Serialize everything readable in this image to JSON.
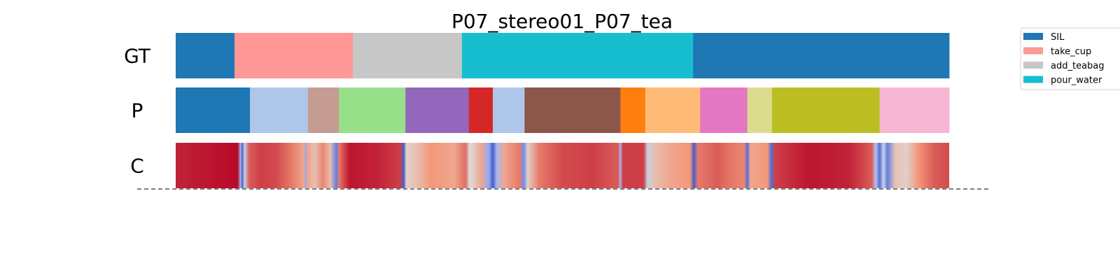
{
  "chart_data": {
    "type": "segmentation_timeline",
    "title": "P07_stereo01_P07_tea",
    "rows": [
      {
        "label": "GT",
        "segments": [
          {
            "start": 0.0,
            "end": 0.076,
            "color": "#1f77b4"
          },
          {
            "start": 0.076,
            "end": 0.229,
            "color": "#ff9896"
          },
          {
            "start": 0.229,
            "end": 0.37,
            "color": "#c7c7c7"
          },
          {
            "start": 0.37,
            "end": 0.669,
            "color": "#17becf"
          },
          {
            "start": 0.669,
            "end": 1.0,
            "color": "#1f77b4"
          }
        ]
      },
      {
        "label": "P",
        "segments": [
          {
            "start": 0.0,
            "end": 0.096,
            "color": "#1f77b4"
          },
          {
            "start": 0.096,
            "end": 0.171,
            "color": "#aec7e8"
          },
          {
            "start": 0.171,
            "end": 0.211,
            "color": "#c49c94"
          },
          {
            "start": 0.211,
            "end": 0.297,
            "color": "#98df8a"
          },
          {
            "start": 0.297,
            "end": 0.379,
            "color": "#9467bd"
          },
          {
            "start": 0.379,
            "end": 0.41,
            "color": "#d62728"
          },
          {
            "start": 0.41,
            "end": 0.451,
            "color": "#aec7e8"
          },
          {
            "start": 0.451,
            "end": 0.575,
            "color": "#8c564b"
          },
          {
            "start": 0.575,
            "end": 0.607,
            "color": "#ff7f0e"
          },
          {
            "start": 0.607,
            "end": 0.678,
            "color": "#ffbb78"
          },
          {
            "start": 0.678,
            "end": 0.739,
            "color": "#e377c2"
          },
          {
            "start": 0.739,
            "end": 0.771,
            "color": "#dbdb8d"
          },
          {
            "start": 0.771,
            "end": 0.91,
            "color": "#bcbd22"
          },
          {
            "start": 0.91,
            "end": 1.0,
            "color": "#f7b6d2"
          }
        ]
      },
      {
        "label": "C",
        "type": "confidence_heatmap",
        "colormap": "coolwarm",
        "confidence_stops": [
          [
            0.0,
            0.95
          ],
          [
            0.04,
            0.97
          ],
          [
            0.08,
            0.99
          ],
          [
            0.084,
            0.35
          ],
          [
            0.086,
            0.05
          ],
          [
            0.089,
            0.45
          ],
          [
            0.095,
            0.85
          ],
          [
            0.11,
            0.9
          ],
          [
            0.13,
            0.88
          ],
          [
            0.15,
            0.8
          ],
          [
            0.165,
            0.7
          ],
          [
            0.168,
            0.3
          ],
          [
            0.17,
            0.72
          ],
          [
            0.18,
            0.6
          ],
          [
            0.19,
            0.78
          ],
          [
            0.2,
            0.62
          ],
          [
            0.208,
            0.15
          ],
          [
            0.211,
            0.8
          ],
          [
            0.225,
            0.97
          ],
          [
            0.26,
            0.95
          ],
          [
            0.29,
            0.9
          ],
          [
            0.295,
            0.05
          ],
          [
            0.298,
            0.55
          ],
          [
            0.31,
            0.6
          ],
          [
            0.33,
            0.75
          ],
          [
            0.36,
            0.7
          ],
          [
            0.375,
            0.82
          ],
          [
            0.38,
            0.5
          ],
          [
            0.395,
            0.7
          ],
          [
            0.405,
            0.3
          ],
          [
            0.41,
            0.05
          ],
          [
            0.415,
            0.35
          ],
          [
            0.425,
            0.7
          ],
          [
            0.445,
            0.8
          ],
          [
            0.45,
            0.2
          ],
          [
            0.455,
            0.55
          ],
          [
            0.47,
            0.8
          ],
          [
            0.5,
            0.88
          ],
          [
            0.54,
            0.9
          ],
          [
            0.572,
            0.85
          ],
          [
            0.575,
            0.35
          ],
          [
            0.578,
            0.9
          ],
          [
            0.605,
            0.9
          ],
          [
            0.61,
            0.45
          ],
          [
            0.62,
            0.62
          ],
          [
            0.64,
            0.7
          ],
          [
            0.665,
            0.75
          ],
          [
            0.67,
            0.05
          ],
          [
            0.675,
            0.8
          ],
          [
            0.7,
            0.85
          ],
          [
            0.72,
            0.8
          ],
          [
            0.735,
            0.78
          ],
          [
            0.739,
            0.1
          ],
          [
            0.743,
            0.7
          ],
          [
            0.765,
            0.75
          ],
          [
            0.77,
            0.1
          ],
          [
            0.775,
            0.9
          ],
          [
            0.82,
            0.97
          ],
          [
            0.87,
            0.95
          ],
          [
            0.9,
            0.85
          ],
          [
            0.905,
            0.4
          ],
          [
            0.91,
            0.1
          ],
          [
            0.915,
            0.45
          ],
          [
            0.92,
            0.15
          ],
          [
            0.93,
            0.6
          ],
          [
            0.945,
            0.55
          ],
          [
            0.96,
            0.75
          ],
          [
            0.98,
            0.85
          ],
          [
            1.0,
            0.88
          ]
        ]
      }
    ],
    "legend": {
      "placement": "upper-right",
      "entries": [
        {
          "label": "SIL",
          "color": "#1f77b4"
        },
        {
          "label": "take_cup",
          "color": "#ff9896"
        },
        {
          "label": "add_teabag",
          "color": "#c7c7c7"
        },
        {
          "label": "pour_water",
          "color": "#17becf"
        }
      ]
    },
    "baseline_style": "dashed"
  }
}
